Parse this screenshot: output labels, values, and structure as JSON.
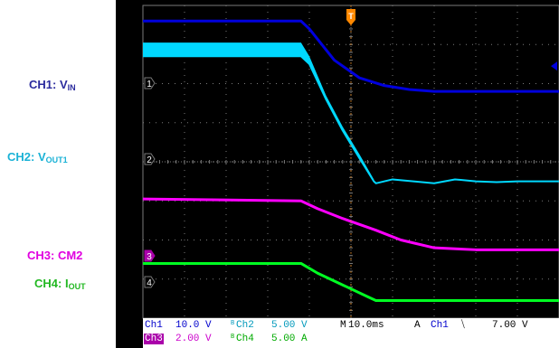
{
  "labels": {
    "ch1": {
      "prefix": "CH1: V",
      "sub": "IN",
      "color": "#2b2b9e"
    },
    "ch2": {
      "prefix": "CH2: V",
      "sub": "OUT1",
      "color": "#1ab2d6"
    },
    "ch3": {
      "prefix": "CH3: CM2",
      "sub": "",
      "color": "#e000e0"
    },
    "ch4": {
      "prefix": "CH4: I",
      "sub": "OUT",
      "color": "#22b822"
    }
  },
  "markers": {
    "ch1": "1",
    "ch2": "2",
    "ch3": "3",
    "ch4": "4",
    "trigger": "T"
  },
  "readout": {
    "row1": {
      "ch1_name": "Ch1",
      "ch1_scale": "10.0 V",
      "bw": "B",
      "ch2_name": "Ch2",
      "ch2_scale": "5.00 V",
      "m_label": "M",
      "timebase": "10.0ms",
      "a_label": "A",
      "trig_src": "Ch1",
      "trig_slope": "⧹",
      "trig_level": "7.00 V"
    },
    "row2": {
      "ch3_name": "Ch3",
      "ch3_scale": "2.00 V",
      "bw": "B",
      "ch4_name": "Ch4",
      "ch4_scale": "5.00 A"
    }
  },
  "colors": {
    "ch1": "#0000dd",
    "ch2": "#00d8ff",
    "ch3": "#ff00ff",
    "ch4": "#00ff22",
    "trigger": "#ff8800",
    "grid": "#7a7a7a",
    "readout_bg": "#ffffff"
  },
  "chart_data": {
    "type": "line",
    "title": "",
    "xlabel": "",
    "ylabel": "",
    "xlim": [
      0,
      100
    ],
    "ylim": [
      -4,
      4
    ],
    "time_per_div_ms": 10.0,
    "grid": true,
    "series": [
      {
        "name": "CH1: VIN",
        "x": [
          0,
          38,
          40,
          46,
          52,
          58,
          64,
          70,
          80,
          90,
          100
        ],
        "y": [
          3.6,
          3.6,
          3.4,
          2.6,
          2.15,
          1.95,
          1.85,
          1.8,
          1.8,
          1.8,
          1.8
        ]
      },
      {
        "name": "CH2: VOUT1",
        "x": [
          0,
          38,
          40,
          44,
          48,
          52,
          55.5,
          56,
          60,
          65,
          70,
          75,
          80,
          85,
          90,
          95,
          100
        ],
        "y": [
          2.7,
          2.7,
          2.5,
          1.6,
          0.8,
          0.1,
          -0.5,
          -0.55,
          -0.45,
          -0.5,
          -0.55,
          -0.45,
          -0.5,
          -0.52,
          -0.5,
          -0.5,
          -0.5
        ]
      },
      {
        "name": "CH3: CM2",
        "x": [
          0,
          38,
          42,
          48,
          56,
          62,
          70,
          80,
          90,
          100
        ],
        "y": [
          -0.95,
          -1.0,
          -1.2,
          -1.45,
          -1.75,
          -2.0,
          -2.2,
          -2.25,
          -2.25,
          -2.25
        ]
      },
      {
        "name": "CH4: IOUT",
        "x": [
          0,
          38,
          42,
          48,
          54,
          56,
          60,
          70,
          80,
          90,
          100
        ],
        "y": [
          -2.6,
          -2.6,
          -2.85,
          -3.15,
          -3.45,
          -3.55,
          -3.55,
          -3.55,
          -3.55,
          -3.55,
          -3.55
        ]
      }
    ],
    "ch2_fill_envelope": {
      "x": [
        0,
        38,
        40,
        44,
        48,
        52,
        55.5
      ],
      "y": [
        3.05,
        3.05,
        2.7,
        1.7,
        0.9,
        0.2,
        -0.45
      ]
    },
    "trigger_x": 50
  }
}
